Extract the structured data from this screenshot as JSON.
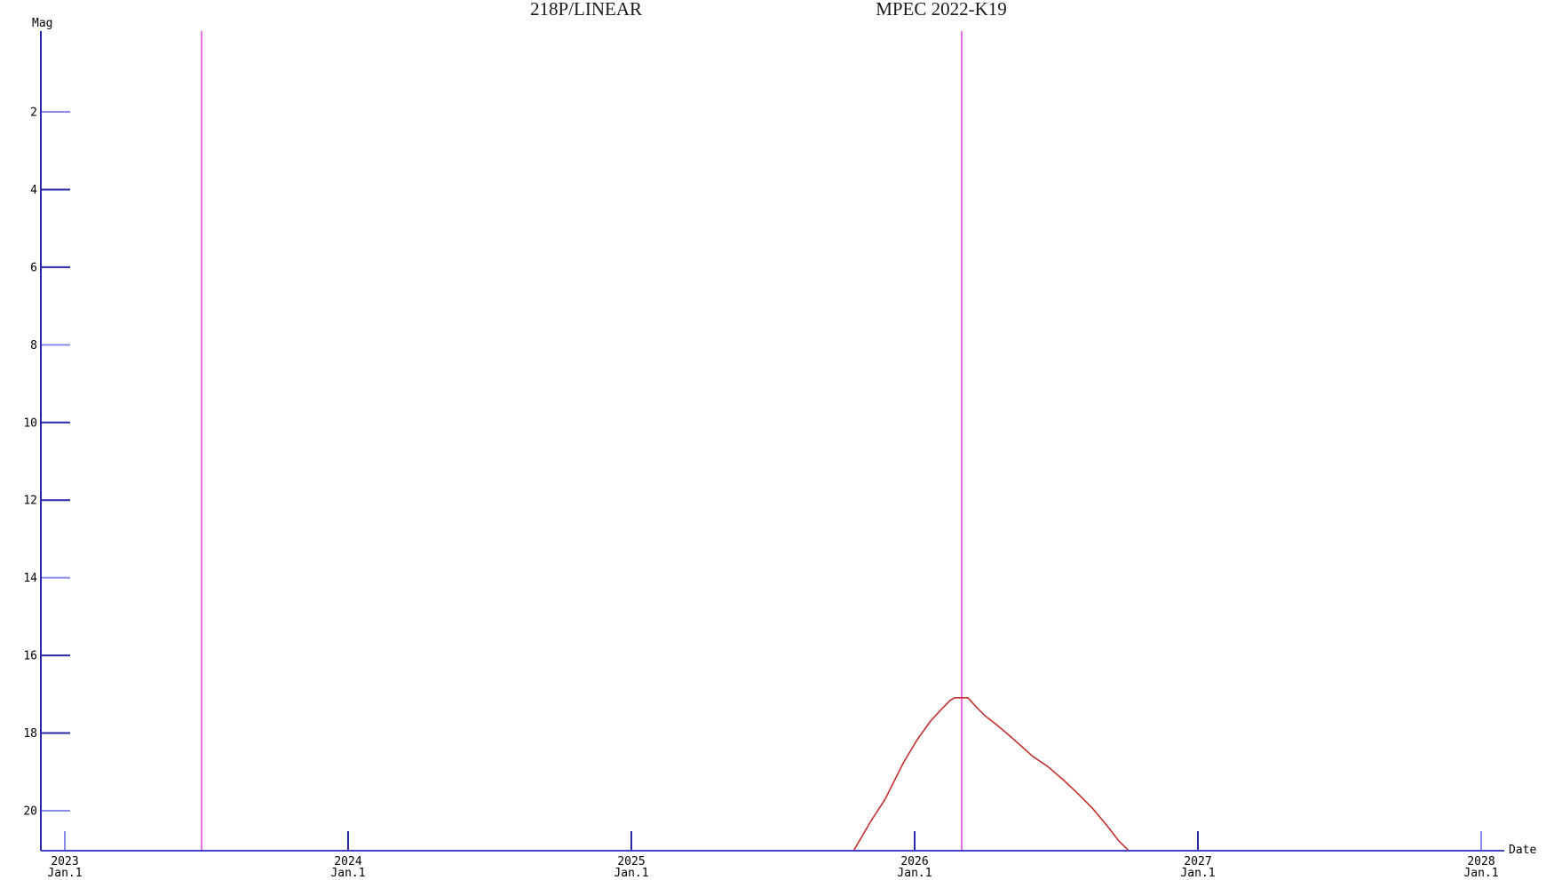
{
  "chart": {
    "title": "218P/LINEAR",
    "subtitle": "MPEC 2022-K19",
    "ylabel": "Mag",
    "xlabel": "Date"
  },
  "colors": {
    "background": "#ffffff",
    "y_axis_line": "#2626a6",
    "x_axis_line": "#4343c8",
    "tick_light": "#8a8aec",
    "tick_dark": "#2828aa",
    "curve_red": "#c43030",
    "marker_magenta": "#e870e8",
    "text": "#000000"
  },
  "chart_data": {
    "type": "line",
    "title": "218P/LINEAR",
    "subtitle": "MPEC 2022-K19",
    "xlabel": "Date",
    "ylabel": "Mag",
    "grid": false,
    "legend": "none",
    "y_axis": {
      "ticks": [
        2,
        4,
        6,
        8,
        10,
        12,
        14,
        16,
        18,
        20
      ],
      "tick_shades": [
        "L",
        "D",
        "D",
        "L",
        "D",
        "D",
        "L",
        "D",
        "D",
        "L"
      ],
      "range": [
        0,
        21
      ],
      "inverted": true,
      "note": "magnitude increases downward; brighter is up"
    },
    "x_axis": {
      "ticks": [
        {
          "label": "2023",
          "sublabel": "Jan.1",
          "year": 2023,
          "shade": "L"
        },
        {
          "label": "2024",
          "sublabel": "Jan.1",
          "year": 2024,
          "shade": "D"
        },
        {
          "label": "2025",
          "sublabel": "Jan.1",
          "year": 2025,
          "shade": "D"
        },
        {
          "label": "2026",
          "sublabel": "Jan.1",
          "year": 2026,
          "shade": "D"
        },
        {
          "label": "2027",
          "sublabel": "Jan.1",
          "year": 2027,
          "shade": "D"
        },
        {
          "label": "2028",
          "sublabel": "Jan.1",
          "year": 2028,
          "shade": "L"
        }
      ],
      "range_years": [
        2022.92,
        2028.08
      ]
    },
    "vertical_markers": [
      {
        "name": "marker-mid-2023",
        "x_year": 2023.483
      },
      {
        "name": "marker-early-2026",
        "x_year": 2026.166
      }
    ],
    "series": [
      {
        "name": "predicted-magnitude",
        "peak": {
          "x_year": 2026.17,
          "mag": 17.1
        },
        "points": [
          [
            2025.787,
            21.0
          ],
          [
            2025.843,
            20.3
          ],
          [
            2025.896,
            19.7
          ],
          [
            2025.962,
            18.74
          ],
          [
            2026.009,
            18.17
          ],
          [
            2026.056,
            17.69
          ],
          [
            2026.094,
            17.39
          ],
          [
            2026.125,
            17.16
          ],
          [
            2026.141,
            17.09
          ],
          [
            2026.188,
            17.09
          ],
          [
            2026.219,
            17.34
          ],
          [
            2026.251,
            17.57
          ],
          [
            2026.288,
            17.78
          ],
          [
            2026.323,
            17.99
          ],
          [
            2026.376,
            18.33
          ],
          [
            2026.417,
            18.6
          ],
          [
            2026.47,
            18.86
          ],
          [
            2026.524,
            19.2
          ],
          [
            2026.574,
            19.54
          ],
          [
            2026.627,
            19.93
          ],
          [
            2026.68,
            20.39
          ],
          [
            2026.721,
            20.78
          ],
          [
            2026.752,
            21.0
          ]
        ]
      }
    ]
  }
}
